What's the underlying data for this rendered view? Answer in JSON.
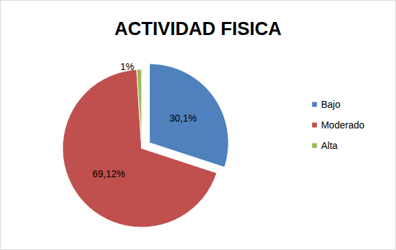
{
  "chart_data": {
    "type": "pie",
    "title": "ACTIVIDAD FISICA",
    "categories": [
      "Bajo",
      "Moderado",
      "Alta"
    ],
    "values": [
      30.1,
      69.12,
      1
    ],
    "value_labels": [
      "30,1%",
      "69,12%",
      "1%"
    ],
    "colors": [
      "#4f81bd",
      "#c0504d",
      "#9bbb59"
    ],
    "data_labels": true,
    "legend": "right"
  }
}
